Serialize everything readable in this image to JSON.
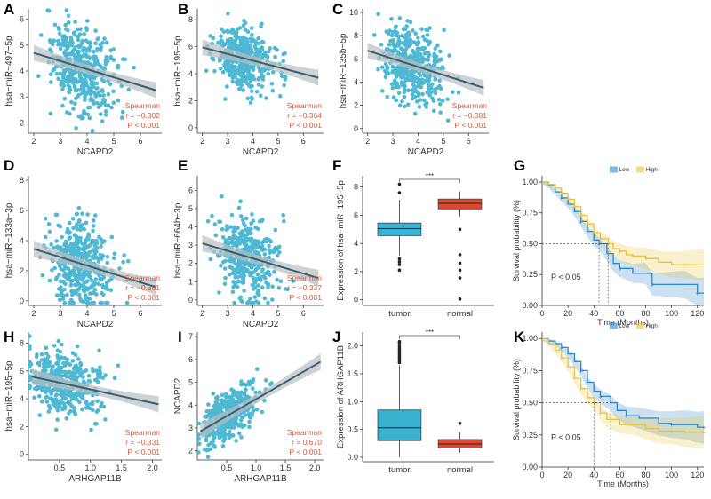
{
  "figure": {
    "panel_letters": [
      "A",
      "B",
      "C",
      "D",
      "E",
      "F",
      "G",
      "H",
      "I",
      "J",
      "K"
    ]
  },
  "colors": {
    "point": "#4fb8d3",
    "line": "#3a5f6e",
    "band": "#b9bfc2",
    "stat_text": "#e05a3a",
    "tumor_box": "#39b1cf",
    "normal_box": "#e0492f",
    "low": "#2f88c8",
    "high": "#e8c23a",
    "axis": "#333333"
  },
  "chart_data": [
    {
      "panel": "A",
      "type": "scatter",
      "xlabel": "NCAPD2",
      "ylabel": "hsa−miR−497−5p",
      "xlim": [
        1.8,
        6.8
      ],
      "ylim": [
        1.6,
        6.4
      ],
      "xticks": [
        "2",
        "3",
        "4",
        "5",
        "6"
      ],
      "yticks": [
        "2",
        "3",
        "4",
        "5",
        "6"
      ],
      "fit": {
        "x": [
          2,
          6.6
        ],
        "y": [
          4.7,
          3.25
        ]
      },
      "stats": [
        "Spearman",
        "r = −0.302",
        "P < 0.001"
      ],
      "n_points": 420,
      "seed": 11,
      "x_center": 3.5,
      "x_spread": 0.75,
      "y_spread": 0.85
    },
    {
      "panel": "B",
      "type": "scatter",
      "xlabel": "NCAPD2",
      "ylabel": "hsa−miR−195−5p",
      "xlim": [
        1.8,
        6.8
      ],
      "ylim": [
        -0.4,
        8.8
      ],
      "xticks": [
        "2",
        "3",
        "4",
        "5",
        "6"
      ],
      "yticks": [
        "0",
        "2",
        "4",
        "6",
        "8"
      ],
      "fit": {
        "x": [
          2,
          6.6
        ],
        "y": [
          5.95,
          3.7
        ]
      },
      "stats": [
        "Spearman",
        "r = −0.364",
        "P < 0.001"
      ],
      "n_points": 420,
      "seed": 23,
      "x_center": 3.4,
      "x_spread": 0.7,
      "y_spread": 1.15
    },
    {
      "panel": "C",
      "type": "scatter",
      "xlabel": "NCAPD2",
      "ylabel": "hsa−miR−135b−5p",
      "xlim": [
        1.8,
        6.8
      ],
      "ylim": [
        -0.4,
        10.3
      ],
      "xticks": [
        "2",
        "3",
        "4",
        "5",
        "6"
      ],
      "yticks": [
        "0",
        "2",
        "4",
        "6",
        "8",
        "10"
      ],
      "fit": {
        "x": [
          2,
          6.6
        ],
        "y": [
          6.7,
          3.5
        ]
      },
      "stats": [
        "Spearman",
        "r = −0.381",
        "P < 0.001"
      ],
      "n_points": 420,
      "seed": 37,
      "x_center": 3.5,
      "x_spread": 0.75,
      "y_spread": 1.6
    },
    {
      "panel": "D",
      "type": "scatter",
      "xlabel": "NCAPD2",
      "ylabel": "hsa−miR−133a−3p",
      "xlim": [
        1.8,
        6.8
      ],
      "ylim": [
        -0.3,
        8.3
      ],
      "xticks": [
        "2",
        "3",
        "4",
        "5",
        "6"
      ],
      "yticks": [
        "0",
        "2",
        "4",
        "6",
        "8"
      ],
      "fit": {
        "x": [
          2,
          6.6
        ],
        "y": [
          3.45,
          0.9
        ]
      },
      "stats": [
        "Spearman",
        "r = −0.301",
        "P < 0.001"
      ],
      "n_points": 420,
      "seed": 41,
      "x_center": 3.5,
      "x_spread": 0.75,
      "y_spread": 1.4
    },
    {
      "panel": "E",
      "type": "scatter",
      "xlabel": "NCAPD2",
      "ylabel": "hsa−miR−664b−3p",
      "xlim": [
        1.8,
        6.8
      ],
      "ylim": [
        -0.3,
        6.8
      ],
      "xticks": [
        "2",
        "3",
        "4",
        "5",
        "6"
      ],
      "yticks": [
        "0",
        "1",
        "2",
        "3",
        "4",
        "5",
        "6"
      ],
      "fit": {
        "x": [
          2,
          6.6
        ],
        "y": [
          3.1,
          1.2
        ]
      },
      "stats": [
        "Spearman",
        "r = −0.337",
        "P < 0.001"
      ],
      "n_points": 420,
      "seed": 53,
      "x_center": 3.5,
      "x_spread": 0.75,
      "y_spread": 1.05
    },
    {
      "panel": "H",
      "type": "scatter",
      "xlabel": "ARHGAP11B",
      "ylabel": "hsa−miR−195−5p",
      "xlim": [
        0,
        2.15
      ],
      "ylim": [
        -0.4,
        8.8
      ],
      "xticks": [
        "0.5",
        "1.0",
        "1.5",
        "2.0"
      ],
      "yticks": [
        "0",
        "2",
        "4",
        "6",
        "8"
      ],
      "xtick_values": [
        0.5,
        1.0,
        1.5,
        2.0
      ],
      "fit": {
        "x": [
          0.05,
          2.1
        ],
        "y": [
          5.6,
          3.6
        ]
      },
      "stats": [
        "Spearman",
        "r = −0.331",
        "P < 0.001"
      ],
      "n_points": 420,
      "seed": 67,
      "x_center": 0.45,
      "x_spread": 0.35,
      "y_spread": 1.1,
      "x_min_clip": 0.02
    },
    {
      "panel": "I",
      "type": "scatter",
      "xlabel": "ARHGAP11B",
      "ylabel": "NCAPD2",
      "xlim": [
        0,
        2.15
      ],
      "ylim": [
        1.6,
        7.2
      ],
      "xticks": [
        "0.5",
        "1.0",
        "1.5",
        "2.0"
      ],
      "yticks": [
        "2",
        "3",
        "4",
        "5",
        "6",
        "7"
      ],
      "xtick_values": [
        0.5,
        1.0,
        1.5,
        2.0
      ],
      "fit": {
        "x": [
          0.05,
          2.1
        ],
        "y": [
          2.85,
          5.9
        ]
      },
      "stats": [
        "Spearman",
        "r = 0.670",
        "P < 0.001"
      ],
      "n_points": 420,
      "seed": 79,
      "x_center": 0.4,
      "x_spread": 0.3,
      "y_spread": 0.5,
      "x_min_clip": 0.02
    },
    {
      "panel": "F",
      "type": "box",
      "ylabel": "Expression of hsa−miR−195−5p",
      "categories": [
        "tumor",
        "normal"
      ],
      "ylim": [
        -0.4,
        8.8
      ],
      "yticks": [
        "0",
        "2",
        "4",
        "6",
        "8"
      ],
      "boxes": [
        {
          "q1": 4.55,
          "median": 5.05,
          "q3": 5.45,
          "whislo": 3.15,
          "whishi": 7.1,
          "outliers": [
            2.1,
            2.5,
            2.7,
            2.9,
            7.6,
            8.2
          ]
        },
        {
          "q1": 6.45,
          "median": 6.85,
          "q3": 7.15,
          "whislo": 5.9,
          "whishi": 7.7,
          "outliers": [
            0.05,
            1.55,
            2.1,
            2.6,
            3.2,
            5.0
          ]
        }
      ],
      "significance": "***"
    },
    {
      "panel": "J",
      "type": "box",
      "ylabel": "Expression of ARHGAP11B",
      "categories": [
        "tumor",
        "normal"
      ],
      "ylim": [
        -0.08,
        2.25
      ],
      "yticks": [
        "0.0",
        "0.5",
        "1.0",
        "1.5",
        "2.0"
      ],
      "boxes": [
        {
          "q1": 0.3,
          "median": 0.53,
          "q3": 0.85,
          "whislo": 0.0,
          "whishi": 1.65,
          "outliers": [
            1.7,
            1.73,
            1.77,
            1.8,
            1.84,
            1.88,
            1.92,
            1.96,
            2.0,
            2.05,
            2.08
          ]
        },
        {
          "q1": 0.17,
          "median": 0.24,
          "q3": 0.32,
          "whislo": 0.08,
          "whishi": 0.45,
          "outliers": [
            0.61
          ]
        }
      ],
      "significance": "***"
    },
    {
      "panel": "G",
      "type": "line",
      "subtype": "survival",
      "xlabel": "Time (Months)",
      "ylabel": "Survival probability (%)",
      "xlim": [
        0,
        125
      ],
      "ylim": [
        0,
        1.05
      ],
      "xticks": [
        "0",
        "20",
        "40",
        "60",
        "80",
        "100",
        "120"
      ],
      "yticks": [
        "0.00",
        "0.25",
        "0.50",
        "0.75",
        "1.00"
      ],
      "legend": [
        "Low",
        "High"
      ],
      "pvalue_label": "P < 0.05",
      "median_lines": [
        44,
        51
      ],
      "series": [
        {
          "name": "Low",
          "x": [
            0,
            5,
            10,
            15,
            20,
            25,
            30,
            35,
            40,
            44,
            50,
            55,
            60,
            70,
            80,
            85,
            100,
            110,
            120,
            125
          ],
          "y": [
            1.0,
            0.97,
            0.92,
            0.87,
            0.82,
            0.76,
            0.68,
            0.6,
            0.53,
            0.5,
            0.42,
            0.34,
            0.3,
            0.26,
            0.26,
            0.17,
            0.17,
            0.17,
            0.1,
            0.1
          ]
        },
        {
          "name": "High",
          "x": [
            0,
            5,
            10,
            15,
            20,
            25,
            30,
            35,
            40,
            45,
            51,
            55,
            60,
            65,
            70,
            80,
            90,
            100,
            110,
            120,
            125
          ],
          "y": [
            1.0,
            0.98,
            0.95,
            0.91,
            0.86,
            0.8,
            0.73,
            0.66,
            0.59,
            0.54,
            0.5,
            0.46,
            0.44,
            0.41,
            0.4,
            0.38,
            0.35,
            0.33,
            0.33,
            0.33,
            0.33
          ]
        }
      ]
    },
    {
      "panel": "K",
      "type": "line",
      "subtype": "survival",
      "xlabel": "Time (Months)",
      "ylabel": "Survival probability (%)",
      "xlim": [
        0,
        125
      ],
      "ylim": [
        0,
        1.05
      ],
      "xticks": [
        "0",
        "20",
        "40",
        "60",
        "80",
        "100",
        "120"
      ],
      "yticks": [
        "0.00",
        "0.25",
        "0.50",
        "0.75",
        "1.00"
      ],
      "legend": [
        "Low",
        "High"
      ],
      "pvalue_label": "P < 0.05",
      "median_lines": [
        40,
        53
      ],
      "series": [
        {
          "name": "Low",
          "x": [
            0,
            5,
            10,
            15,
            20,
            25,
            30,
            35,
            40,
            45,
            53,
            58,
            65,
            75,
            90,
            100,
            110,
            120,
            125
          ],
          "y": [
            1.0,
            0.98,
            0.96,
            0.93,
            0.88,
            0.82,
            0.75,
            0.66,
            0.59,
            0.55,
            0.5,
            0.44,
            0.4,
            0.38,
            0.34,
            0.33,
            0.33,
            0.31,
            0.31
          ]
        },
        {
          "name": "High",
          "x": [
            0,
            5,
            10,
            15,
            20,
            25,
            30,
            35,
            40,
            45,
            50,
            60,
            70,
            80,
            90,
            100,
            110,
            120,
            125
          ],
          "y": [
            1.0,
            0.96,
            0.91,
            0.85,
            0.78,
            0.69,
            0.61,
            0.54,
            0.5,
            0.42,
            0.37,
            0.33,
            0.33,
            0.3,
            0.28,
            0.28,
            0.27,
            0.27,
            0.27
          ]
        }
      ]
    }
  ]
}
